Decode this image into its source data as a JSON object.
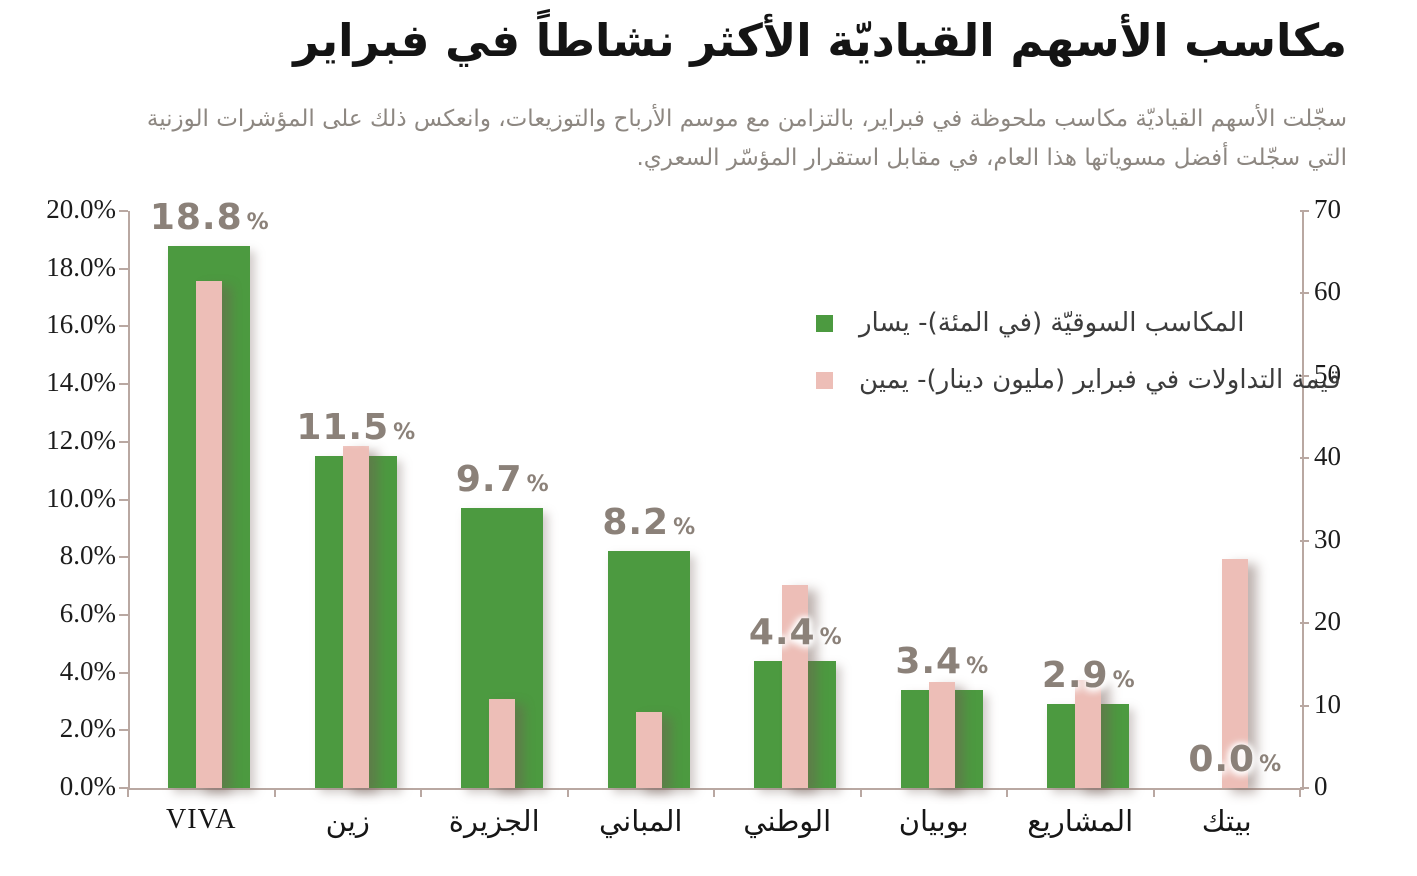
{
  "header": {
    "title": "مكاسب الأسهم القياديّة الأكثر نشاطاً في فبراير",
    "subtitle_line1": "سجّلت الأسهم القياديّة مكاسب ملحوظة في فبراير، بالتزامن مع موسم الأرباح والتوزيعات، وانعكس ذلك على المؤشرات الوزنية",
    "subtitle_line2": "التي سجّلت أفضل مسوياتها هذا العام، في مقابل استقرار المؤسّر السعري."
  },
  "colors": {
    "green_bar": "#4c9a40",
    "pink_bar": "#edbeb7",
    "value_label_gray": "#8b8179",
    "axis_line": "#b9a8a2",
    "tick_text": "#1c1c1c",
    "subtitle_gray": "#8d8781",
    "legend_text": "#3c3c3c"
  },
  "chart_data": {
    "type": "bar",
    "title": "مكاسب الأسهم القياديّة الأكثر نشاطاً في فبراير",
    "categories": [
      "VIVA",
      "زين",
      "الجزيرة",
      "المباني",
      "الوطني",
      "بوبيان",
      "المشاريع",
      "بيتك"
    ],
    "series": [
      {
        "name": "المكاسب السوقيّة (في المئة)- يسار",
        "axis": "left",
        "color": "#4c9a40",
        "values": [
          18.8,
          11.5,
          9.7,
          8.2,
          4.4,
          3.4,
          2.9,
          0.0
        ],
        "data_labels": [
          "18.8",
          "11.5",
          "9.7",
          "8.2",
          "4.4",
          "3.4",
          "2.9",
          "0.0"
        ],
        "data_label_suffix": "%"
      },
      {
        "name": "قيمة التداولات في فبراير (مليون دينار)- يمين",
        "axis": "right",
        "color": "#edbeb7",
        "values": [
          61.5,
          41.5,
          10.8,
          9.2,
          24.6,
          12.9,
          13.1,
          27.8
        ]
      }
    ],
    "left_axis": {
      "min": 0,
      "max": 20,
      "step": 2,
      "decimals": 1,
      "suffix": "%"
    },
    "right_axis": {
      "min": 0,
      "max": 70,
      "step": 10,
      "decimals": 0,
      "suffix": ""
    },
    "grid": false,
    "legend_position": "inside-top-right"
  }
}
